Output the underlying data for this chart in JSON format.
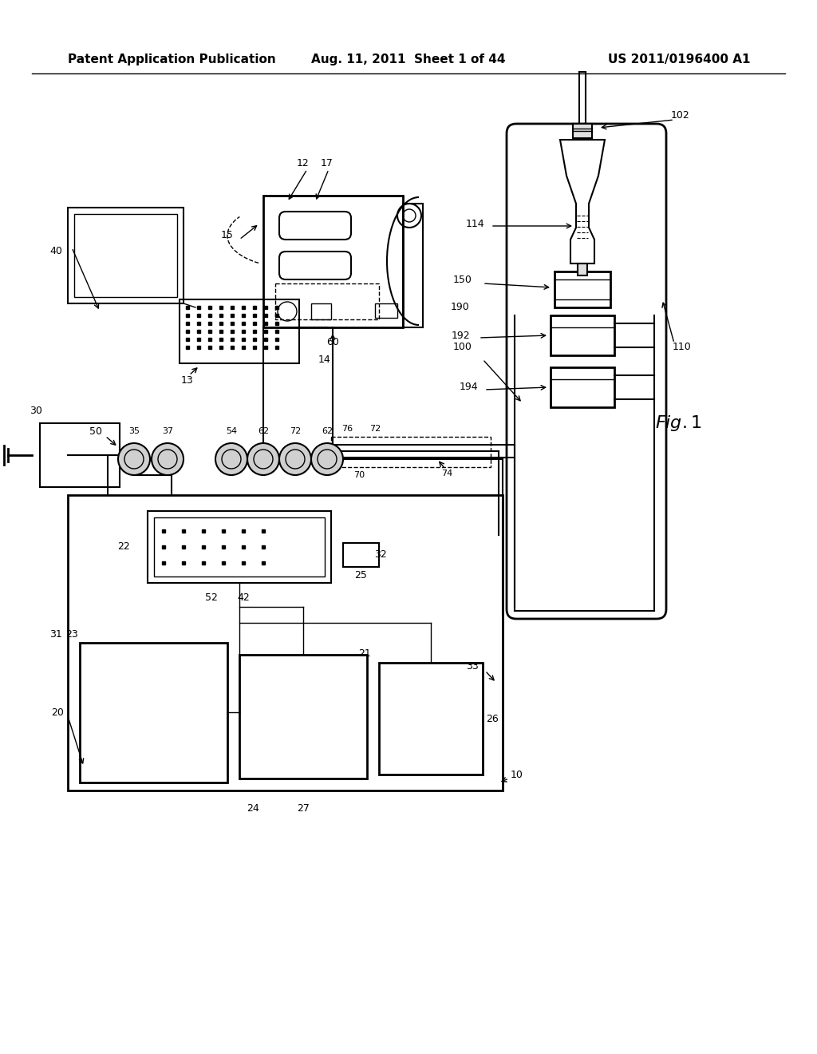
{
  "title_left": "Patent Application Publication",
  "title_mid": "Aug. 11, 2011  Sheet 1 of 44",
  "title_right": "US 2011/0196400 A1",
  "fig_label": "Fig. 1",
  "bg_color": "#ffffff"
}
